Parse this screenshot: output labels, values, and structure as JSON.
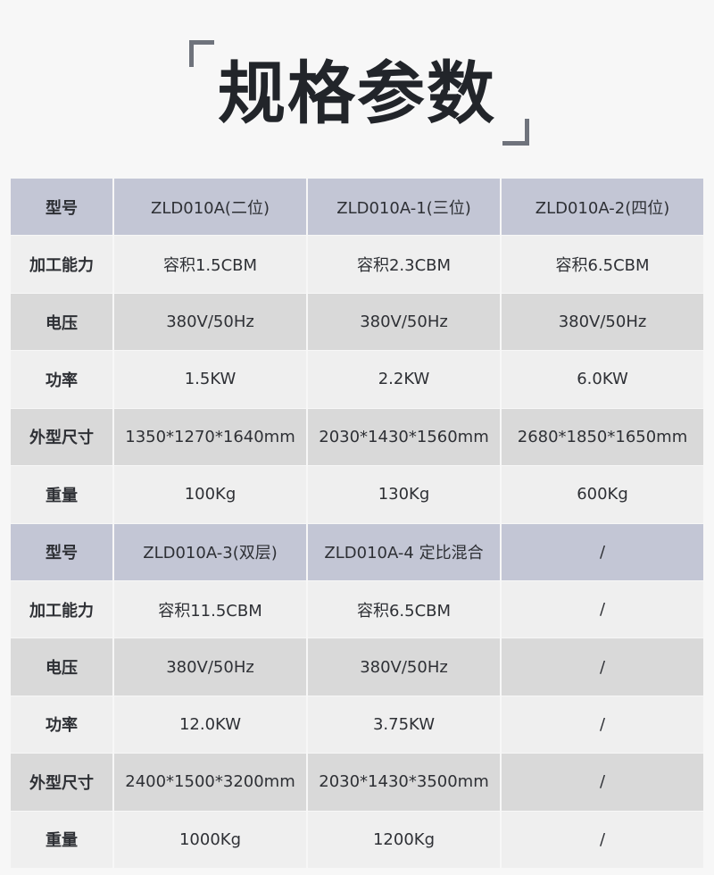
{
  "title": "规格参数",
  "rows": [
    {
      "type": "head",
      "label": "型号",
      "values": [
        "ZLD010A(二位)",
        "ZLD010A-1(三位)",
        "ZLD010A-2(四位)"
      ]
    },
    {
      "type": "a",
      "label": "加工能力",
      "values": [
        "容积1.5CBM",
        "容积2.3CBM",
        "容积6.5CBM"
      ]
    },
    {
      "type": "b",
      "label": "电压",
      "values": [
        "380V/50Hz",
        "380V/50Hz",
        "380V/50Hz"
      ]
    },
    {
      "type": "a",
      "label": "功率",
      "values": [
        "1.5KW",
        "2.2KW",
        "6.0KW"
      ]
    },
    {
      "type": "b",
      "label": "外型尺寸",
      "values": [
        "1350*1270*1640mm",
        "2030*1430*1560mm",
        "2680*1850*1650mm"
      ]
    },
    {
      "type": "a",
      "label": "重量",
      "values": [
        "100Kg",
        "130Kg",
        "600Kg"
      ]
    },
    {
      "type": "head",
      "label": "型号",
      "values": [
        "ZLD010A-3(双层)",
        "ZLD010A-4 定比混合",
        "/"
      ]
    },
    {
      "type": "a",
      "label": "加工能力",
      "values": [
        "容积11.5CBM",
        "容积6.5CBM",
        "/"
      ]
    },
    {
      "type": "b",
      "label": "电压",
      "values": [
        "380V/50Hz",
        "380V/50Hz",
        "/"
      ]
    },
    {
      "type": "a",
      "label": "功率",
      "values": [
        "12.0KW",
        "3.75KW",
        "/"
      ]
    },
    {
      "type": "b",
      "label": "外型尺寸",
      "values": [
        "2400*1500*3200mm",
        "2030*1430*3500mm",
        "/"
      ]
    },
    {
      "type": "a",
      "label": "重量",
      "values": [
        "1000Kg",
        "1200Kg",
        "/"
      ]
    }
  ]
}
